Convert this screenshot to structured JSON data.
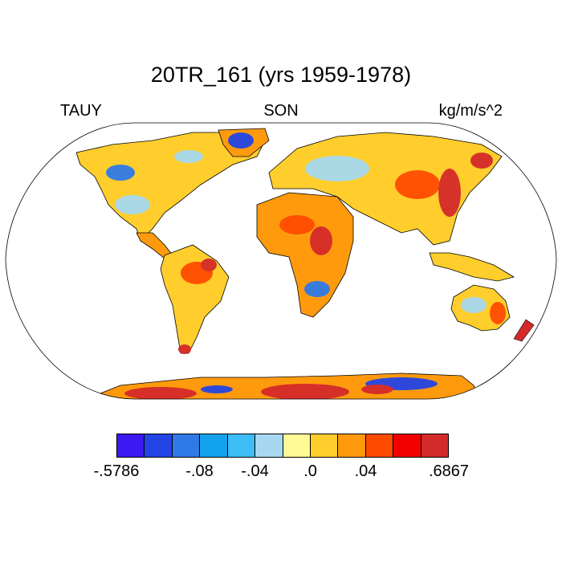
{
  "title": "20TR_161 (yrs 1959-1978)",
  "left_label": "TAUY",
  "center_label": "SON",
  "right_label": "kg/m/s^2",
  "colorbar": {
    "colors": [
      "#3b19f0",
      "#2345e6",
      "#2f7ae6",
      "#13a3ee",
      "#3dbdf5",
      "#a6d8ef",
      "#fffa96",
      "#ffce2d",
      "#ff9a0d",
      "#ff4b00",
      "#f20000",
      "#d42a2a"
    ],
    "tick_labels": [
      "-.5786",
      "-.08",
      "-.04",
      ".0",
      ".04",
      ".6867"
    ]
  },
  "map": {
    "projection": "robinson",
    "land_mask_only": true
  }
}
